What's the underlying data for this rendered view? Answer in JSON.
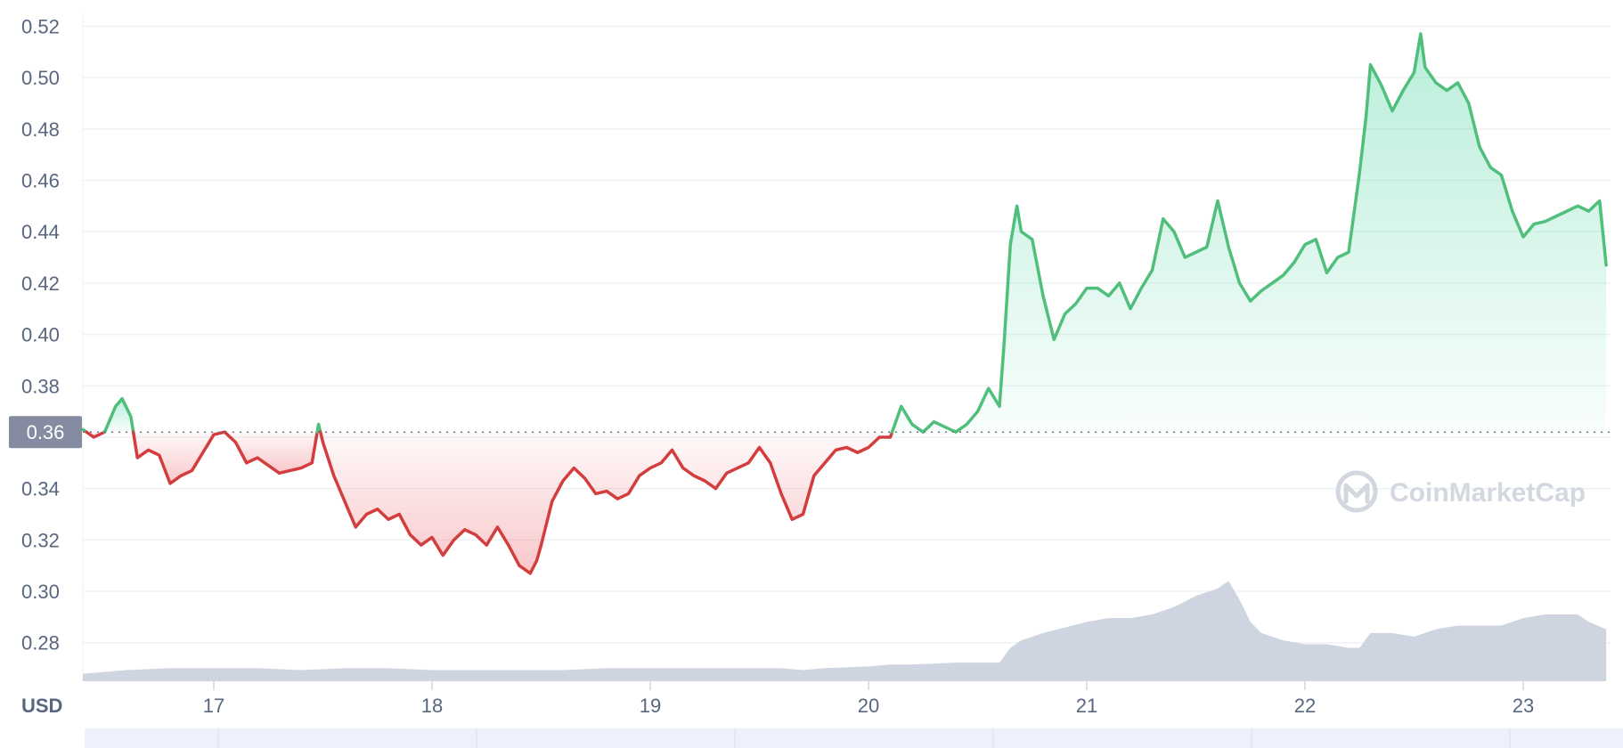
{
  "chart_data": {
    "type": "line",
    "title": "",
    "currency_label": "USD",
    "watermark": "CoinMarketCap",
    "reference_price": 0.362,
    "reference_label": "0.36",
    "ylim": [
      0.265,
      0.525
    ],
    "xlim": [
      16.4,
      23.4
    ],
    "y_ticks": [
      0.28,
      0.3,
      0.32,
      0.34,
      0.36,
      0.38,
      0.4,
      0.42,
      0.44,
      0.46,
      0.48,
      0.5,
      0.52
    ],
    "y_tick_labels": [
      "0.28",
      "0.30",
      "0.32",
      "0.34",
      "",
      "0.38",
      "0.40",
      "0.42",
      "0.44",
      "0.46",
      "0.48",
      "0.50",
      "0.52"
    ],
    "x_ticks": [
      17,
      18,
      19,
      20,
      21,
      22,
      23
    ],
    "x_tick_labels": [
      "17",
      "18",
      "19",
      "20",
      "21",
      "22",
      "23"
    ],
    "colors": {
      "up": "#16c784",
      "down": "#ea3943",
      "up_line": "#4fbf7b",
      "down_line": "#d33d3d",
      "volume": "#cfd4e1",
      "grid": "#eff2f5",
      "label_bg": "#858ca2"
    },
    "series": [
      {
        "x": [
          16.4,
          16.45,
          16.5,
          16.55,
          16.58,
          16.62,
          16.65,
          16.7,
          16.75,
          16.8,
          16.85,
          16.9,
          17.0,
          17.05,
          17.1,
          17.15,
          17.2,
          17.3,
          17.4,
          17.45,
          17.48,
          17.5,
          17.55,
          17.6,
          17.65,
          17.7,
          17.75,
          17.8,
          17.85,
          17.9,
          17.95,
          18.0,
          18.05,
          18.1,
          18.15,
          18.2,
          18.25,
          18.3,
          18.35,
          18.4,
          18.45,
          18.48,
          18.5,
          18.55,
          18.6,
          18.65,
          18.7,
          18.75,
          18.8,
          18.85,
          18.9,
          18.95,
          19.0,
          19.05,
          19.1,
          19.15,
          19.2,
          19.25,
          19.3,
          19.35,
          19.4,
          19.45,
          19.5,
          19.55,
          19.6,
          19.65,
          19.7,
          19.75,
          19.8,
          19.85,
          19.9,
          19.95,
          20.0,
          20.05,
          20.1,
          20.15,
          20.2,
          20.25,
          20.3,
          20.35,
          20.4,
          20.45,
          20.5,
          20.55,
          20.6,
          20.62,
          20.65,
          20.68,
          20.7,
          20.75,
          20.8,
          20.85,
          20.9,
          20.95,
          21.0,
          21.05,
          21.1,
          21.15,
          21.2,
          21.25,
          21.3,
          21.35,
          21.4,
          21.45,
          21.5,
          21.55,
          21.6,
          21.65,
          21.7,
          21.75,
          21.8,
          21.85,
          21.9,
          21.95,
          22.0,
          22.05,
          22.1,
          22.15,
          22.2,
          22.25,
          22.28,
          22.3,
          22.35,
          22.4,
          22.45,
          22.5,
          22.53,
          22.55,
          22.6,
          22.65,
          22.7,
          22.75,
          22.8,
          22.85,
          22.9,
          22.95,
          23.0,
          23.05,
          23.1,
          23.15,
          23.2,
          23.25,
          23.3,
          23.35,
          23.38
        ],
        "values": [
          0.363,
          0.36,
          0.362,
          0.372,
          0.375,
          0.368,
          0.352,
          0.355,
          0.353,
          0.342,
          0.345,
          0.347,
          0.361,
          0.362,
          0.358,
          0.35,
          0.352,
          0.346,
          0.348,
          0.35,
          0.365,
          0.358,
          0.345,
          0.335,
          0.325,
          0.33,
          0.332,
          0.328,
          0.33,
          0.322,
          0.318,
          0.321,
          0.314,
          0.32,
          0.324,
          0.322,
          0.318,
          0.325,
          0.318,
          0.31,
          0.307,
          0.312,
          0.318,
          0.335,
          0.343,
          0.348,
          0.344,
          0.338,
          0.339,
          0.336,
          0.338,
          0.345,
          0.348,
          0.35,
          0.355,
          0.348,
          0.345,
          0.343,
          0.34,
          0.346,
          0.348,
          0.35,
          0.356,
          0.35,
          0.338,
          0.328,
          0.33,
          0.345,
          0.35,
          0.355,
          0.356,
          0.354,
          0.356,
          0.36,
          0.36,
          0.372,
          0.365,
          0.362,
          0.366,
          0.364,
          0.362,
          0.365,
          0.37,
          0.379,
          0.372,
          0.395,
          0.435,
          0.45,
          0.44,
          0.437,
          0.415,
          0.398,
          0.408,
          0.412,
          0.418,
          0.418,
          0.415,
          0.42,
          0.41,
          0.418,
          0.425,
          0.445,
          0.44,
          0.43,
          0.432,
          0.434,
          0.452,
          0.434,
          0.42,
          0.413,
          0.417,
          0.42,
          0.423,
          0.428,
          0.435,
          0.437,
          0.424,
          0.43,
          0.432,
          0.463,
          0.485,
          0.505,
          0.497,
          0.487,
          0.495,
          0.502,
          0.517,
          0.504,
          0.498,
          0.495,
          0.498,
          0.49,
          0.473,
          0.465,
          0.462,
          0.448,
          0.438,
          0.443,
          0.444,
          0.446,
          0.448,
          0.45,
          0.448,
          0.452,
          0.427
        ]
      }
    ],
    "volume": {
      "x": [
        16.4,
        16.6,
        16.8,
        17.0,
        17.2,
        17.4,
        17.6,
        17.8,
        18.0,
        18.2,
        18.4,
        18.6,
        18.8,
        19.0,
        19.2,
        19.4,
        19.6,
        19.7,
        19.8,
        20.0,
        20.1,
        20.2,
        20.4,
        20.5,
        20.6,
        20.65,
        20.7,
        20.8,
        21.0,
        21.1,
        21.2,
        21.3,
        21.4,
        21.5,
        21.6,
        21.65,
        21.7,
        21.75,
        21.8,
        21.9,
        22.0,
        22.1,
        22.2,
        22.25,
        22.3,
        22.4,
        22.5,
        22.6,
        22.7,
        22.8,
        22.9,
        23.0,
        23.1,
        23.2,
        23.25,
        23.3,
        23.38
      ],
      "values": [
        0.02,
        0.03,
        0.035,
        0.035,
        0.035,
        0.03,
        0.035,
        0.035,
        0.03,
        0.03,
        0.03,
        0.03,
        0.035,
        0.035,
        0.035,
        0.035,
        0.035,
        0.03,
        0.035,
        0.04,
        0.045,
        0.045,
        0.05,
        0.05,
        0.05,
        0.09,
        0.11,
        0.13,
        0.16,
        0.17,
        0.17,
        0.18,
        0.2,
        0.23,
        0.25,
        0.27,
        0.22,
        0.16,
        0.13,
        0.11,
        0.1,
        0.1,
        0.09,
        0.09,
        0.13,
        0.13,
        0.12,
        0.14,
        0.15,
        0.15,
        0.15,
        0.17,
        0.18,
        0.18,
        0.18,
        0.16,
        0.14
      ]
    }
  }
}
